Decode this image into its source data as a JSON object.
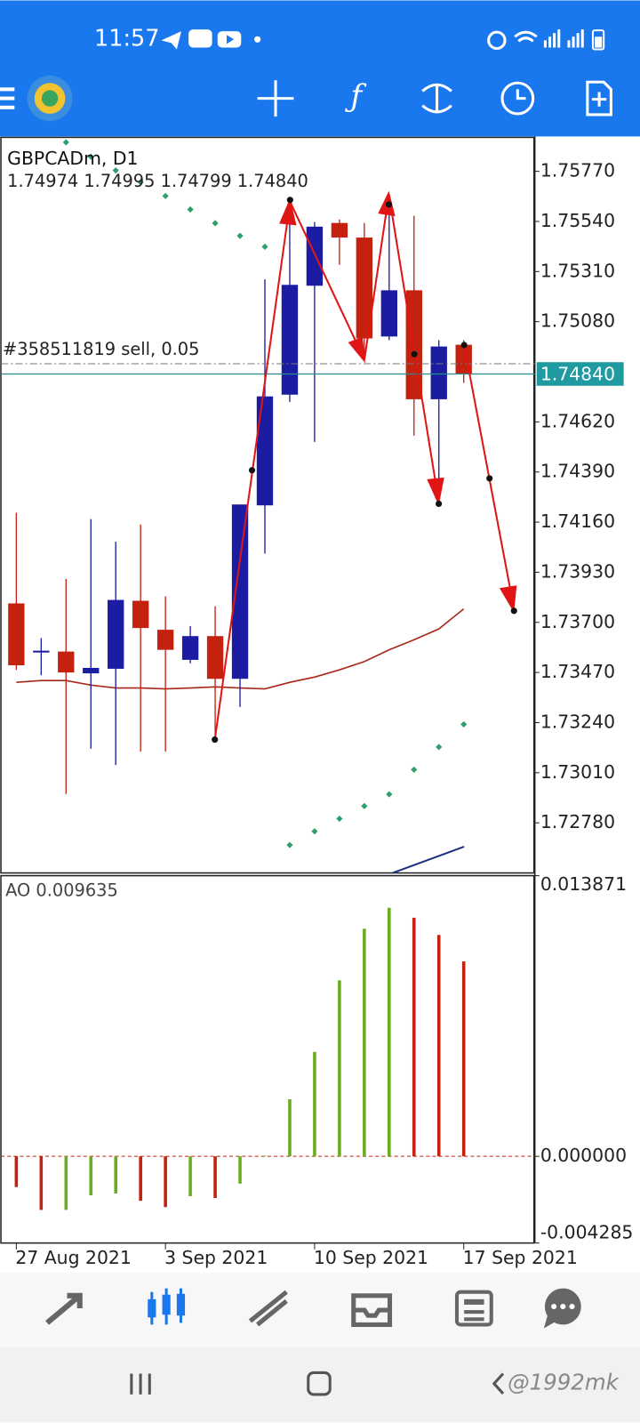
{
  "status_bar": {
    "time": "11:57"
  },
  "chart": {
    "symbol": "GBPCADm, D1",
    "ohlc": "1.74974 1.74995 1.74799 1.74840",
    "ylim": [
      1.7255,
      1.7593
    ],
    "yticks": [
      {
        "value": 1.7577,
        "label": "1.75770"
      },
      {
        "value": 1.7554,
        "label": "1.75540"
      },
      {
        "value": 1.7531,
        "label": "1.75310"
      },
      {
        "value": 1.7508,
        "label": "1.75080"
      },
      {
        "value": 1.7462,
        "label": "1.74620"
      },
      {
        "value": 1.7439,
        "label": "1.74390"
      },
      {
        "value": 1.7416,
        "label": "1.74160"
      },
      {
        "value": 1.7393,
        "label": "1.73930"
      },
      {
        "value": 1.737,
        "label": "1.73700"
      },
      {
        "value": 1.7347,
        "label": "1.73470"
      },
      {
        "value": 1.7324,
        "label": "1.73240"
      },
      {
        "value": 1.7301,
        "label": "1.73010"
      },
      {
        "value": 1.7278,
        "label": "1.72780"
      }
    ],
    "dates": [
      "27 Aug 2021",
      null,
      null,
      null,
      null,
      null,
      "3 Sep 2021",
      null,
      null,
      null,
      null,
      null,
      "10 Sep 2021",
      null,
      null,
      null,
      null,
      null,
      "17 Sep 2021"
    ],
    "candles": {
      "open": [
        1.73787,
        1.73566,
        1.73566,
        1.73466,
        1.73487,
        1.73799,
        1.73666,
        1.73528,
        1.73637,
        1.73441,
        1.74237,
        1.74745,
        1.75245,
        1.75533,
        1.75466,
        1.75012,
        1.75224,
        1.74724,
        1.74974
      ],
      "high": [
        1.74203,
        1.73628,
        1.73899,
        1.74174,
        1.7407,
        1.74149,
        1.7382,
        1.73683,
        1.73774,
        1.74241,
        1.75274,
        1.75641,
        1.75537,
        1.75549,
        1.75533,
        1.75662,
        1.75566,
        1.74995,
        1.74995
      ],
      "low": [
        1.73482,
        1.73457,
        1.72912,
        1.7312,
        1.73045,
        1.73107,
        1.73107,
        1.73512,
        1.73162,
        1.73312,
        1.74016,
        1.74712,
        1.74528,
        1.75341,
        1.74899,
        1.74995,
        1.74557,
        1.74245,
        1.74799
      ],
      "close": [
        1.73503,
        1.7357,
        1.7347,
        1.73491,
        1.73803,
        1.73674,
        1.73574,
        1.73637,
        1.73441,
        1.74241,
        1.74737,
        1.75249,
        1.75516,
        1.75466,
        1.75003,
        1.75224,
        1.74724,
        1.74966,
        1.7484
      ]
    },
    "colors": {
      "up": "#1c1ca3",
      "down": "#c4210f"
    },
    "ma": {
      "color": "#a8281a",
      "values": [
        1.73425,
        1.73433,
        1.73433,
        1.73412,
        1.73399,
        1.73399,
        1.73395,
        1.73399,
        1.73404,
        1.73399,
        1.73395,
        1.73425,
        1.73449,
        1.73482,
        1.7352,
        1.73574,
        1.7362,
        1.7367,
        1.73762
      ]
    },
    "sar": {
      "color": "#2e9e6a",
      "values": [
        null,
        null,
        1.75903,
        1.75837,
        1.75774,
        1.7572,
        1.75657,
        1.75595,
        1.75532,
        1.75474,
        1.75424,
        1.72678,
        1.72741,
        1.72799,
        1.72857,
        1.72911,
        1.73024,
        1.73128,
        1.73232
      ]
    },
    "order_line": {
      "label": "#358511819 sell, 0.05",
      "price": 1.74887
    },
    "bid": {
      "value": 1.7484,
      "label": "1.74840"
    }
  },
  "ao": {
    "title": "AO 0.009635",
    "ylim": [
      -0.004285,
      0.013871
    ],
    "yticks": [
      0.013871,
      {
        "value": 0,
        "label": "0.000000"
      },
      -0.004285
    ],
    "values": [
      -0.00152,
      -0.00265,
      -0.00265,
      -0.00193,
      -0.00184,
      -0.0022,
      -0.00251,
      -0.00197,
      -0.00206,
      -0.00135,
      3e-05,
      0.00282,
      0.00516,
      0.0087,
      0.01125,
      0.01228,
      0.01179,
      0.01094,
      0.009635
    ],
    "colors": [
      "#c4210f",
      "#c4210f",
      "#6aad1e",
      "#6aad1e",
      "#6aad1e",
      "#c4210f",
      "#c4210f",
      "#6aad1e",
      "#c4210f",
      "#6aad1e",
      "#6aad1e",
      "#6aad1e",
      "#6aad1e",
      "#6aad1e",
      "#6aad1e",
      "#6aad1e",
      "#c4210f",
      "#c4210f",
      "#c4210f"
    ]
  },
  "watermark": "@1992mk"
}
